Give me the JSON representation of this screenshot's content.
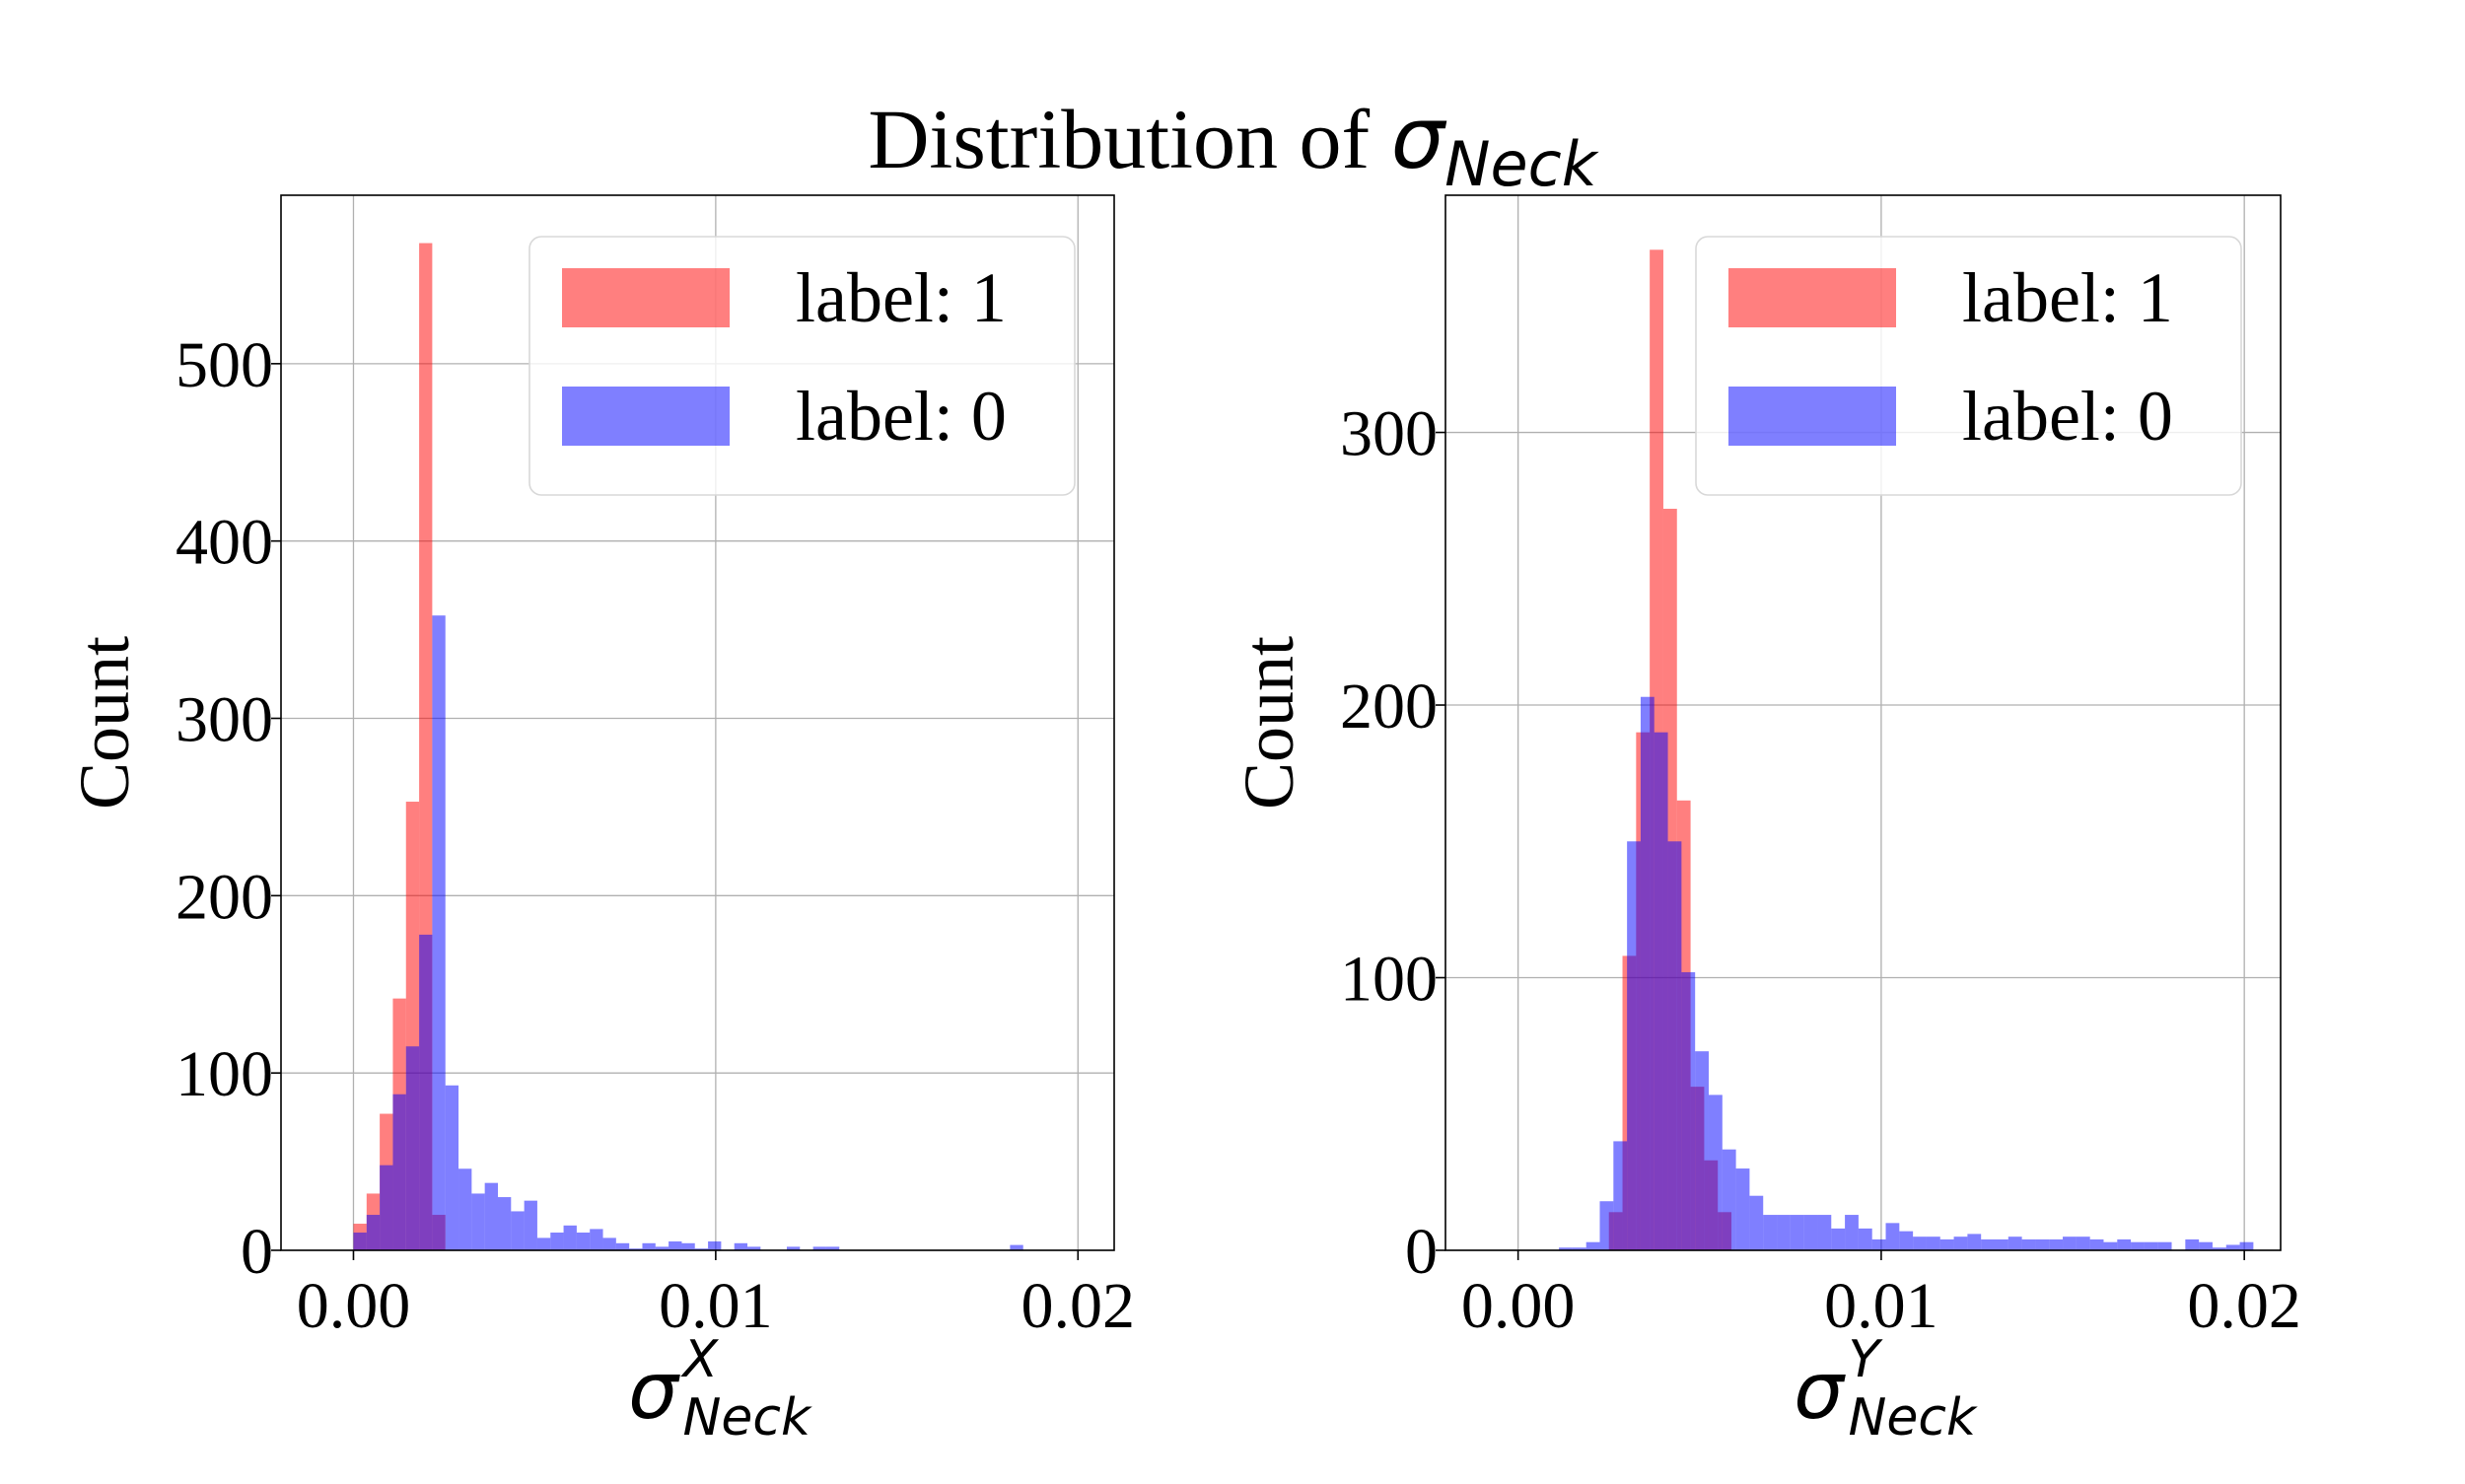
{
  "figure": {
    "title_text": "Distribution of ",
    "title_symbol": "σ",
    "title_subscript": "Neck"
  },
  "colors": {
    "label_1": "#ff0000",
    "label_0": "#0000ff",
    "bar_opacity": 0.5,
    "grid": "#b0b0b0",
    "axis": "#000000"
  },
  "chart_data": [
    {
      "type": "bar",
      "panel": "left",
      "xlabel_symbol": "σ",
      "xlabel_superscript": "X",
      "xlabel_subscript": "Neck",
      "ylabel": "Count",
      "xlim": [
        -0.002,
        0.021
      ],
      "ylim": [
        0,
        595
      ],
      "xticks": [
        0.0,
        0.01,
        0.02
      ],
      "xtick_labels": [
        "0.00",
        "0.01",
        "0.02"
      ],
      "yticks": [
        0,
        100,
        200,
        300,
        400,
        500
      ],
      "ytick_labels": [
        "0",
        "100",
        "200",
        "300",
        "400",
        "500"
      ],
      "grid": true,
      "legend_position": "top-right",
      "series": [
        {
          "name": "label: 1",
          "color_key": "label_1",
          "bin_edges": [
            0.0,
            0.000363,
            0.000725,
            0.001088,
            0.00145,
            0.001813,
            0.002175,
            0.002538
          ],
          "counts": [
            15,
            32,
            77,
            142,
            253,
            568,
            20
          ]
        },
        {
          "name": "label: 0",
          "color_key": "label_0",
          "bin_edges": [
            0.0,
            0.000363,
            0.000725,
            0.001088,
            0.00145,
            0.001813,
            0.002175,
            0.002538,
            0.0029,
            0.003263,
            0.003625,
            0.003988,
            0.00435,
            0.004713,
            0.005075,
            0.005438,
            0.0058,
            0.006163,
            0.006525,
            0.006888,
            0.00725,
            0.007613,
            0.007975,
            0.008338,
            0.0087,
            0.009063,
            0.009425,
            0.009788,
            0.01015,
            0.010513,
            0.010875,
            0.011238,
            0.0116,
            0.011963,
            0.012325,
            0.012688,
            0.01305,
            0.013413,
            0.013775,
            0.014138,
            0.0145,
            0.014863,
            0.015225,
            0.015588,
            0.01595,
            0.016313,
            0.016675,
            0.017038,
            0.0174,
            0.017763,
            0.018125,
            0.018488
          ],
          "counts": [
            10,
            20,
            48,
            88,
            115,
            178,
            358,
            93,
            46,
            32,
            38,
            30,
            22,
            28,
            7,
            10,
            14,
            10,
            12,
            7,
            4,
            1,
            4,
            2,
            5,
            4,
            1,
            5,
            0,
            4,
            2,
            0,
            0,
            2,
            0,
            2,
            2,
            0,
            0,
            0,
            0,
            0,
            0,
            0,
            0,
            0,
            0,
            0,
            0,
            0,
            3
          ]
        }
      ]
    },
    {
      "type": "bar",
      "panel": "right",
      "xlabel_symbol": "σ",
      "xlabel_superscript": "Y",
      "xlabel_subscript": "Neck",
      "ylabel": "Count",
      "xlim": [
        -0.002,
        0.021
      ],
      "ylim": [
        0,
        387
      ],
      "xticks": [
        0.0,
        0.01,
        0.02
      ],
      "xtick_labels": [
        "0.00",
        "0.01",
        "0.02"
      ],
      "yticks": [
        0,
        100,
        200,
        300
      ],
      "ytick_labels": [
        "0",
        "100",
        "200",
        "300"
      ],
      "grid": true,
      "legend_position": "top-right",
      "series": [
        {
          "name": "label: 1",
          "color_key": "label_1",
          "bin_edges": [
            0.0025,
            0.002875,
            0.00325,
            0.003625,
            0.004,
            0.004375,
            0.00475,
            0.005125,
            0.0055,
            0.005875
          ],
          "counts": [
            14,
            108,
            190,
            367,
            272,
            165,
            60,
            33,
            14
          ]
        },
        {
          "name": "label: 0",
          "color_key": "label_0",
          "bin_edges": [
            0.0,
            0.000375,
            0.00075,
            0.001125,
            0.0015,
            0.001875,
            0.00225,
            0.002625,
            0.003,
            0.003375,
            0.00375,
            0.004125,
            0.0045,
            0.004875,
            0.00525,
            0.005625,
            0.006,
            0.006375,
            0.00675,
            0.007125,
            0.0075,
            0.007875,
            0.00825,
            0.008625,
            0.009,
            0.009375,
            0.00975,
            0.010125,
            0.0105,
            0.010875,
            0.01125,
            0.011625,
            0.012,
            0.012375,
            0.01275,
            0.013125,
            0.0135,
            0.013875,
            0.01425,
            0.014625,
            0.015,
            0.015375,
            0.01575,
            0.016125,
            0.0165,
            0.016875,
            0.01725,
            0.017625,
            0.018,
            0.018375,
            0.01875,
            0.019125,
            0.0195,
            0.019875,
            0.02025
          ],
          "counts": [
            0,
            0,
            0,
            1,
            1,
            3,
            18,
            40,
            150,
            203,
            190,
            150,
            102,
            73,
            57,
            37,
            30,
            20,
            13,
            13,
            13,
            13,
            13,
            8,
            13,
            8,
            4,
            10,
            7,
            5,
            5,
            4,
            5,
            6,
            4,
            4,
            5,
            4,
            4,
            4,
            5,
            5,
            4,
            3,
            4,
            3,
            3,
            3,
            0,
            4,
            3,
            1,
            2,
            3
          ]
        }
      ]
    }
  ]
}
